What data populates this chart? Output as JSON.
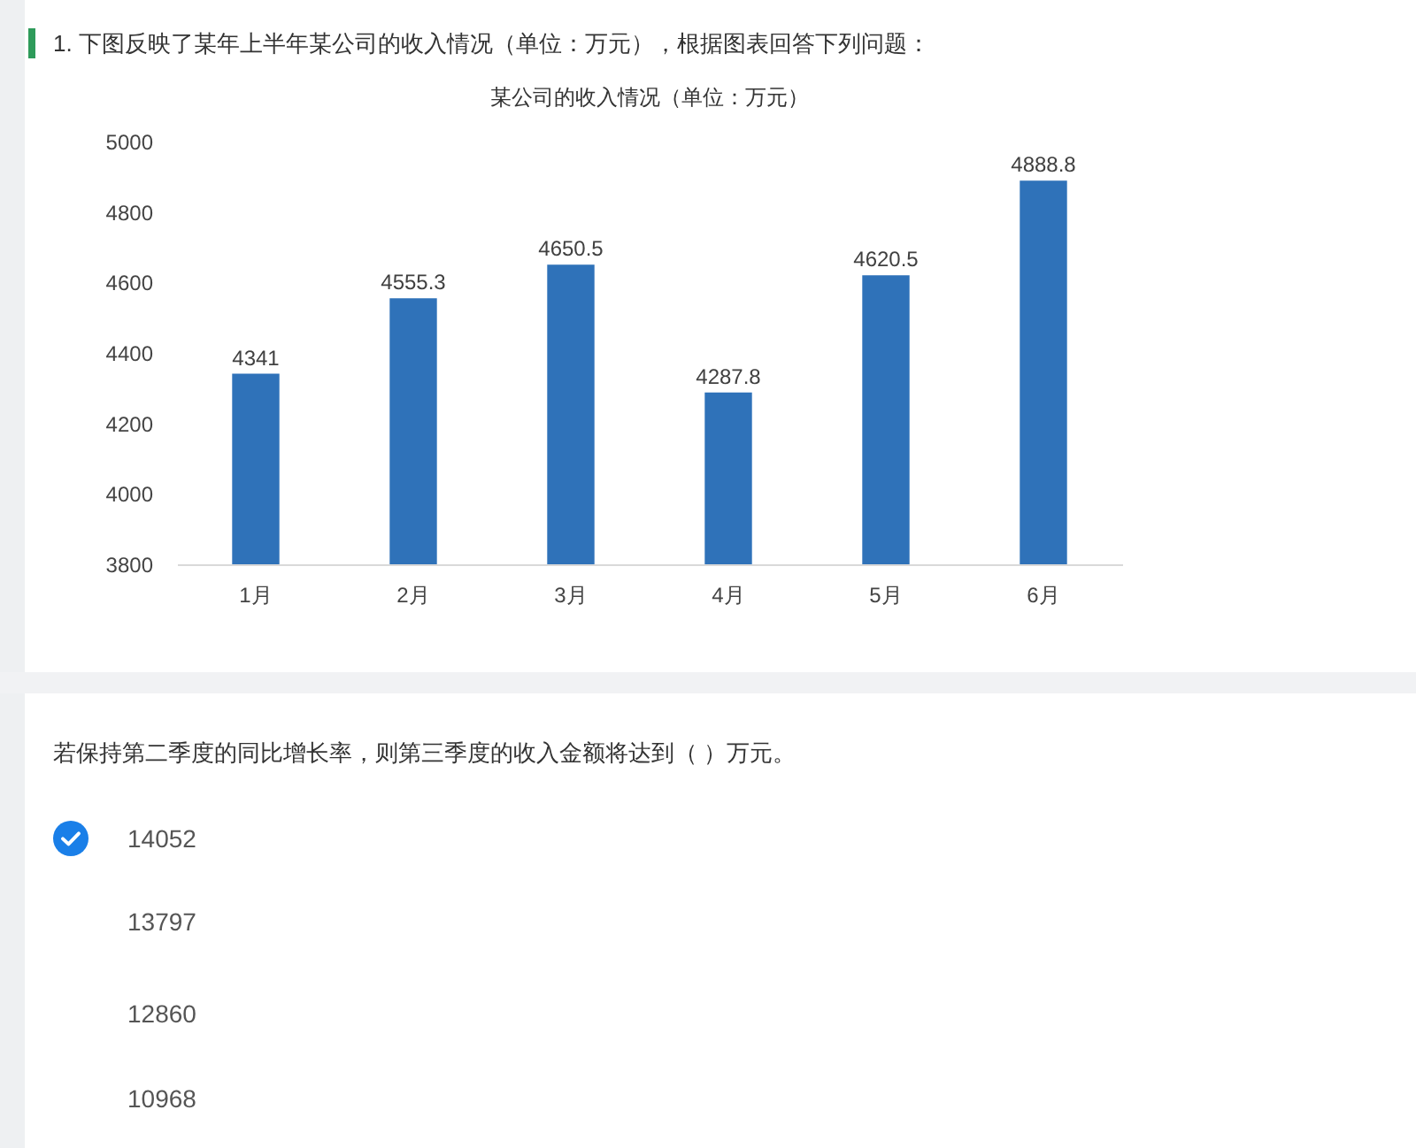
{
  "chart_data": {
    "type": "bar",
    "title": "某公司的收入情况（单位：万元）",
    "categories": [
      "1月",
      "2月",
      "3月",
      "4月",
      "5月",
      "6月"
    ],
    "values": [
      4341,
      4555.3,
      4650.5,
      4287.8,
      4620.5,
      4888.8
    ],
    "color": "#2f72b9",
    "data_labels": true,
    "ylim": [
      3800,
      5000
    ],
    "yticks": [
      3800,
      4000,
      4200,
      4400,
      4600,
      4800,
      5000
    ],
    "grid": false,
    "annotations": [
      "1.  下图反映了某年上半年某公司的收入情况（单位：万元），根据图表回答下列问题：",
      "若保持第二季度的同比增长率，则第三季度的收入金额将达到（ ）万元。",
      "14052",
      "13797",
      "12860",
      "10968"
    ]
  }
}
